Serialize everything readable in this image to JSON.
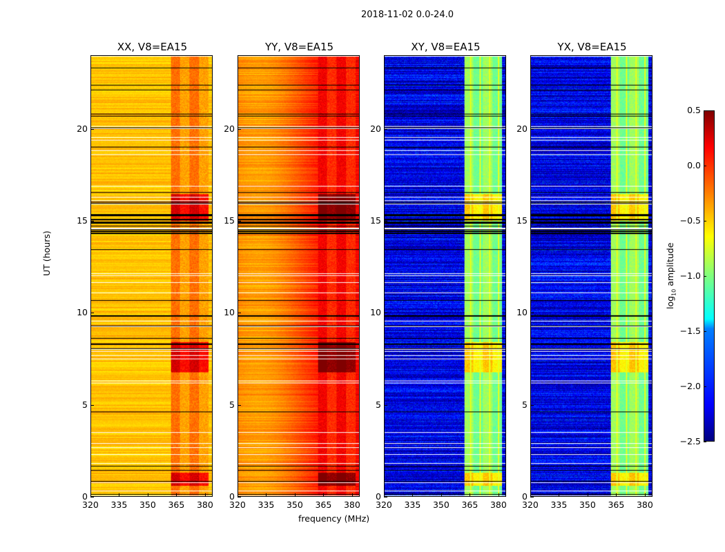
{
  "suptitle": "2018-11-02 0.0-24.0",
  "chart_data": {
    "type": "heatmap",
    "xlabel": "frequency (MHz)",
    "ylabel": "UT (hours)",
    "xlim": [
      320,
      384
    ],
    "ylim": [
      0,
      24
    ],
    "xticks": [
      "320",
      "335",
      "350",
      "365",
      "380"
    ],
    "yticks": [
      "0",
      "5",
      "10",
      "15",
      "20"
    ],
    "xtick_values": [
      320,
      335,
      350,
      365,
      380
    ],
    "ytick_values": [
      0,
      5,
      10,
      15,
      20
    ],
    "rfi_band_mhz": [
      362,
      382
    ],
    "panels": [
      {
        "title": "XX, V8=EA15",
        "base_log_amp": -0.45,
        "band_log_amp": -0.2
      },
      {
        "title": "YY, V8=EA15",
        "base_log_amp": -0.1,
        "band_log_amp": 0.15
      },
      {
        "title": "XY, V8=EA15",
        "base_log_amp": -2.2,
        "band_log_amp": -0.9
      },
      {
        "title": "YX, V8=EA15",
        "base_log_amp": -2.2,
        "band_log_amp": -0.9
      }
    ],
    "colorbar": {
      "label_prefix": "log",
      "label_sub": "10",
      "label_suffix": " amplitude",
      "range": [
        -2.5,
        0.5
      ],
      "ticks": [
        "0.5",
        "0.0",
        "−0.5",
        "−1.0",
        "−1.5",
        "−2.0",
        "−2.5"
      ],
      "tick_values": [
        0.5,
        0,
        -0.5,
        -1,
        -1.5,
        -2,
        -2.5
      ],
      "colormap": "jet"
    }
  }
}
